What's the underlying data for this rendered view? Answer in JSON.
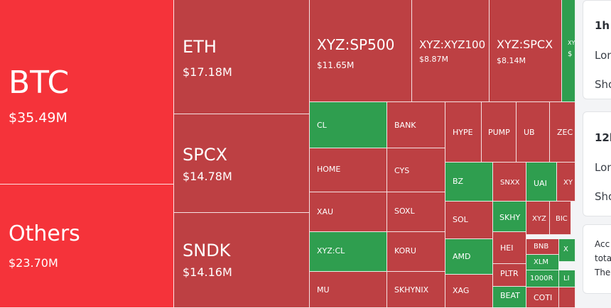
{
  "treemap": {
    "colors": {
      "red": "#bd4043",
      "bright_red": "#f5333a",
      "green": "#2f9e4f"
    },
    "tiles": [
      {
        "symbol": "BTC",
        "value": "$35.49M",
        "color": "bright"
      },
      {
        "symbol": "Others",
        "value": "$23.70M",
        "color": "bright"
      },
      {
        "symbol": "ETH",
        "value": "$17.18M",
        "color": "red"
      },
      {
        "symbol": "SPCX",
        "value": "$14.78M",
        "color": "red"
      },
      {
        "symbol": "SNDK",
        "value": "$14.16M",
        "color": "red"
      },
      {
        "symbol": "XYZ:SP500",
        "value": "$11.65M",
        "color": "red"
      },
      {
        "symbol": "XYZ:XYZ100",
        "value": "$8.87M",
        "color": "red"
      },
      {
        "symbol": "XYZ:SPCX",
        "value": "$8.14M",
        "color": "red"
      },
      {
        "symbol": "XY",
        "value": "$",
        "color": "green"
      },
      {
        "symbol": "CL",
        "value": "",
        "color": "green"
      },
      {
        "symbol": "BANK",
        "value": "",
        "color": "red"
      },
      {
        "symbol": "HYPE",
        "value": "",
        "color": "red"
      },
      {
        "symbol": "PUMP",
        "value": "",
        "color": "red"
      },
      {
        "symbol": "UB",
        "value": "",
        "color": "red"
      },
      {
        "symbol": "ZEC",
        "value": "",
        "color": "red"
      },
      {
        "symbol": "HOME",
        "value": "",
        "color": "red"
      },
      {
        "symbol": "CYS",
        "value": "",
        "color": "red"
      },
      {
        "symbol": "BZ",
        "value": "",
        "color": "green"
      },
      {
        "symbol": "SNXX",
        "value": "",
        "color": "red"
      },
      {
        "symbol": "UAI",
        "value": "",
        "color": "green"
      },
      {
        "symbol": "XY",
        "value": "",
        "color": "red"
      },
      {
        "symbol": "XAU",
        "value": "",
        "color": "red"
      },
      {
        "symbol": "SOXL",
        "value": "",
        "color": "red"
      },
      {
        "symbol": "SOL",
        "value": "",
        "color": "red"
      },
      {
        "symbol": "SKHY",
        "value": "",
        "color": "green"
      },
      {
        "symbol": "XYZ",
        "value": "",
        "color": "red"
      },
      {
        "symbol": "BIC",
        "value": "",
        "color": "red"
      },
      {
        "symbol": "XYZ:CL",
        "value": "",
        "color": "green"
      },
      {
        "symbol": "KORU",
        "value": "",
        "color": "red"
      },
      {
        "symbol": "AMD",
        "value": "",
        "color": "green"
      },
      {
        "symbol": "HEI",
        "value": "",
        "color": "red"
      },
      {
        "symbol": "BNB",
        "value": "",
        "color": "red"
      },
      {
        "symbol": "X",
        "value": "",
        "color": "green"
      },
      {
        "symbol": "XLM",
        "value": "",
        "color": "green"
      },
      {
        "symbol": "PLTR",
        "value": "",
        "color": "red"
      },
      {
        "symbol": "1000R",
        "value": "",
        "color": "green"
      },
      {
        "symbol": "LI",
        "value": "",
        "color": "green"
      },
      {
        "symbol": "MU",
        "value": "",
        "color": "red"
      },
      {
        "symbol": "SKHYNIX",
        "value": "",
        "color": "red"
      },
      {
        "symbol": "XAG",
        "value": "",
        "color": "red"
      },
      {
        "symbol": "BEAT",
        "value": "",
        "color": "green"
      },
      {
        "symbol": "COTI",
        "value": "",
        "color": "red"
      },
      {
        "symbol": "",
        "value": "",
        "color": "red"
      }
    ]
  },
  "panel": {
    "card1": {
      "title": "1h",
      "long": "Lon",
      "short": "Sho"
    },
    "card2": {
      "title": "12h",
      "long": "Lon",
      "short": "Sho"
    },
    "card3": {
      "line1": "Acc",
      "line2": "tota",
      "line3": "The"
    }
  }
}
